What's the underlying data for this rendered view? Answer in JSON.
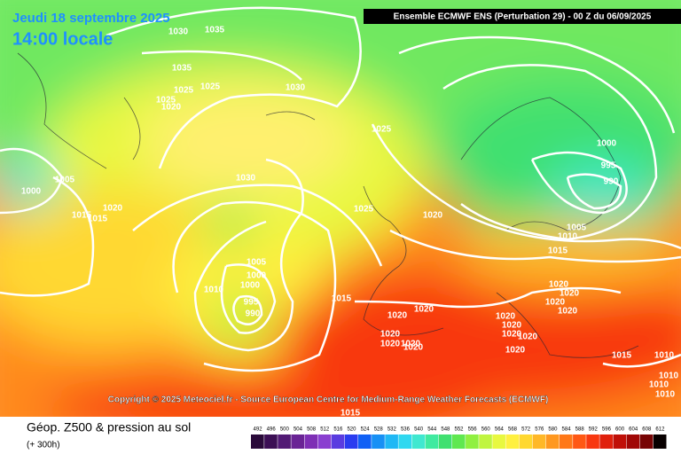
{
  "header": {
    "date": "Jeudi 18 septembre 2025",
    "time": "14:00 locale",
    "run": "Ensemble ECMWF ENS  (Perturbation 29)  -  00 Z du 06/09/2025"
  },
  "map": {
    "isobar_labels": [
      1030,
      1035,
      1035,
      1025,
      1025,
      1025,
      1020,
      1030,
      1025,
      1030,
      1000,
      1005,
      1015,
      1020,
      1015,
      1025,
      1020,
      1000,
      995,
      990,
      1005,
      1010,
      1015,
      1005,
      1000,
      1000,
      1010,
      1015,
      995,
      990,
      1020,
      1020,
      1020,
      1020,
      1020,
      1020,
      1020,
      1020,
      1020,
      1020,
      1020,
      1020,
      1020,
      1020,
      1020,
      1015,
      1010,
      1010,
      1010,
      1010,
      1015
    ],
    "copyright": "Copyright © 2025 Meteociel.fr - Source European Centre for Medium-Range Weather Forecasts (ECMWF)"
  },
  "footer": {
    "title": "Géop. Z500 & pression au sol",
    "lead": "(+ 300h)"
  },
  "legend": {
    "items": [
      {
        "label": 492,
        "color": "#2a0a3a"
      },
      {
        "label": 496,
        "color": "#3c0f55"
      },
      {
        "label": 500,
        "color": "#521a75"
      },
      {
        "label": 504,
        "color": "#6a2495"
      },
      {
        "label": 508,
        "color": "#7e2fb5"
      },
      {
        "label": 512,
        "color": "#8a3fd0"
      },
      {
        "label": 516,
        "color": "#5a3ce0"
      },
      {
        "label": 520,
        "color": "#2a3cf0"
      },
      {
        "label": 524,
        "color": "#1060f5"
      },
      {
        "label": 528,
        "color": "#1890f5"
      },
      {
        "label": 532,
        "color": "#20b8f5"
      },
      {
        "label": 536,
        "color": "#30d8f0"
      },
      {
        "label": 540,
        "color": "#40e8d0"
      },
      {
        "label": 544,
        "color": "#40eaa0"
      },
      {
        "label": 548,
        "color": "#40e070"
      },
      {
        "label": 552,
        "color": "#60e850"
      },
      {
        "label": 556,
        "color": "#90f040"
      },
      {
        "label": 560,
        "color": "#c0f540"
      },
      {
        "label": 564,
        "color": "#e8f840"
      },
      {
        "label": 568,
        "color": "#fff040"
      },
      {
        "label": 572,
        "color": "#ffd830"
      },
      {
        "label": 576,
        "color": "#ffb828"
      },
      {
        "label": 580,
        "color": "#ff9820"
      },
      {
        "label": 584,
        "color": "#ff7818"
      },
      {
        "label": 588,
        "color": "#ff5814"
      },
      {
        "label": 592,
        "color": "#f83810"
      },
      {
        "label": 596,
        "color": "#e0200c"
      },
      {
        "label": 600,
        "color": "#c01008"
      },
      {
        "label": 604,
        "color": "#a00806"
      },
      {
        "label": 608,
        "color": "#780404"
      },
      {
        "label": 612,
        "color": "#080000"
      }
    ]
  }
}
